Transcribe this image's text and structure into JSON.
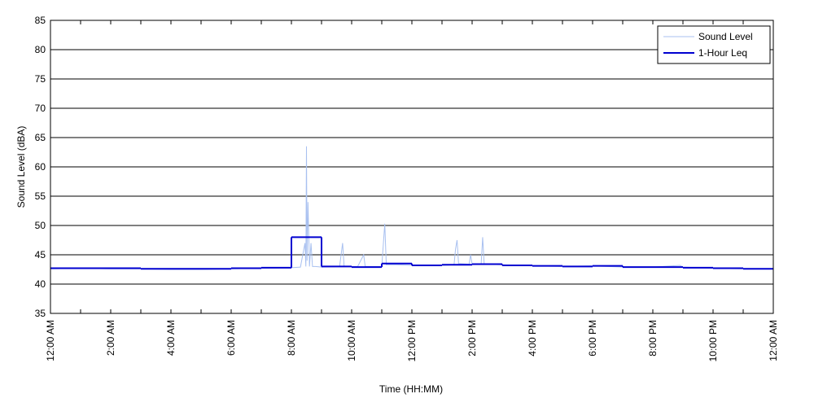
{
  "chart_data": {
    "type": "line",
    "x_label": "Time (HH:MM)",
    "y_label": "Sound Level (dBA)",
    "xlim": [
      0,
      24
    ],
    "ylim": [
      35,
      85
    ],
    "yticks": [
      35,
      40,
      45,
      50,
      55,
      60,
      65,
      70,
      75,
      80,
      85
    ],
    "xticks": [
      {
        "value": 0,
        "label": "12:00 AM"
      },
      {
        "value": 2,
        "label": "2:00 AM"
      },
      {
        "value": 4,
        "label": "4:00 AM"
      },
      {
        "value": 6,
        "label": "6:00 AM"
      },
      {
        "value": 8,
        "label": "8:00 AM"
      },
      {
        "value": 10,
        "label": "10:00 AM"
      },
      {
        "value": 12,
        "label": "12:00 PM"
      },
      {
        "value": 14,
        "label": "2:00 PM"
      },
      {
        "value": 16,
        "label": "4:00 PM"
      },
      {
        "value": 18,
        "label": "6:00 PM"
      },
      {
        "value": 20,
        "label": "8:00 PM"
      },
      {
        "value": 22,
        "label": "10:00 PM"
      },
      {
        "value": 24,
        "label": "12:00 AM"
      }
    ],
    "grid": "y",
    "legend": "upper right",
    "series": [
      {
        "name": "Sound Level",
        "color": "#a8c0f0",
        "style": "line",
        "x": [
          0,
          1,
          2,
          3,
          4,
          5,
          6,
          7,
          8,
          8.3,
          8.45,
          8.48,
          8.5,
          8.52,
          8.55,
          8.6,
          8.65,
          8.7,
          8.8,
          9,
          9.6,
          9.7,
          9.75,
          10.2,
          10.4,
          10.45,
          11,
          11.1,
          11.15,
          11.5,
          12,
          13,
          13.4,
          13.45,
          13.5,
          13.55,
          13.9,
          13.95,
          14,
          14.3,
          14.35,
          14.4,
          15,
          16,
          17,
          18,
          19,
          20,
          20.9,
          21,
          22,
          23,
          24
        ],
        "values": [
          42.6,
          42.7,
          42.6,
          42.6,
          42.5,
          42.5,
          42.6,
          42.7,
          42.8,
          42.9,
          47,
          43,
          63.5,
          44,
          54,
          43,
          47,
          43,
          43,
          42.9,
          43,
          47,
          43,
          43,
          45,
          43,
          43,
          50.3,
          43.3,
          43.3,
          43.2,
          43.2,
          43.3,
          46,
          47.5,
          43.5,
          43.4,
          45,
          43.4,
          43.4,
          48,
          43.4,
          43.3,
          43.1,
          43,
          43.1,
          42.9,
          42.9,
          43.2,
          42.9,
          42.7,
          42.6,
          42.6
        ]
      },
      {
        "name": "1-Hour Leq",
        "color": "#0000d0",
        "style": "step",
        "x": [
          0,
          1,
          2,
          3,
          4,
          5,
          6,
          7,
          8,
          9,
          10,
          11,
          12,
          13,
          14,
          15,
          16,
          17,
          18,
          19,
          20,
          21,
          22,
          23
        ],
        "values": [
          42.7,
          42.7,
          42.7,
          42.6,
          42.6,
          42.6,
          42.7,
          42.8,
          48.0,
          43.0,
          42.9,
          43.5,
          43.2,
          43.3,
          43.4,
          43.2,
          43.1,
          43.0,
          43.1,
          42.9,
          42.9,
          42.8,
          42.7,
          42.6
        ]
      }
    ]
  }
}
